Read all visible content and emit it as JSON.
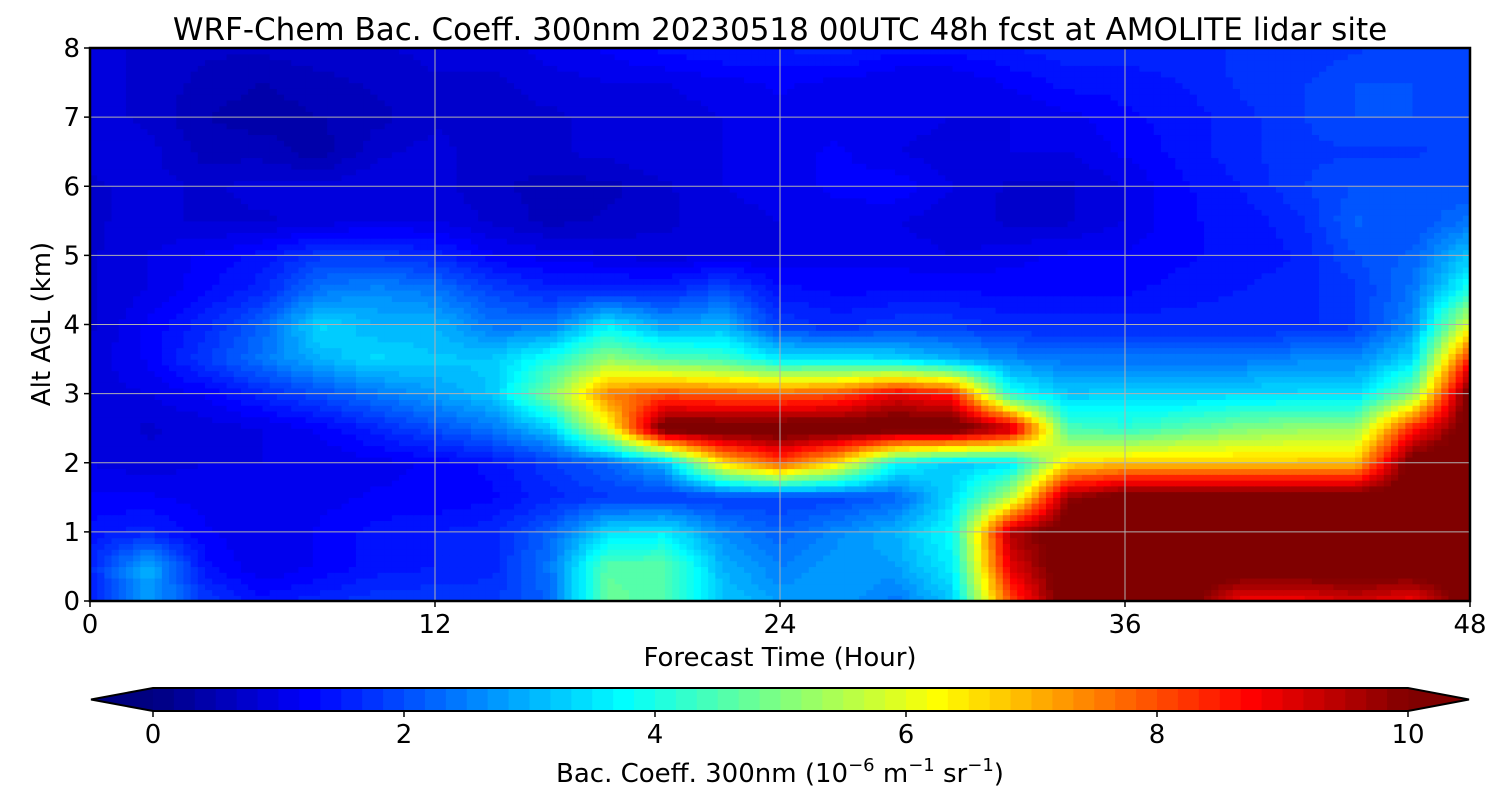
{
  "chart_data": {
    "type": "heatmap",
    "subtype": "filled-contour time-height cross-section",
    "title": "WRF-Chem Bac. Coeff. 300nm  20230518 00UTC 48h fcst at AMOLITE lidar site",
    "xlabel": "Forecast Time (Hour)",
    "ylabel": "Alt AGL (km)",
    "xlim": [
      0,
      48
    ],
    "ylim": [
      0,
      8
    ],
    "x_ticks": [
      0,
      12,
      24,
      36,
      48
    ],
    "y_ticks": [
      0,
      1,
      2,
      3,
      4,
      5,
      6,
      7,
      8
    ],
    "grid": true,
    "x": [
      0,
      2,
      4,
      6,
      8,
      10,
      12,
      14,
      16,
      18,
      20,
      22,
      24,
      26,
      28,
      30,
      32,
      34,
      36,
      38,
      40,
      42,
      44,
      46,
      48
    ],
    "y": [
      0,
      0.5,
      1,
      1.5,
      2,
      2.5,
      3,
      3.5,
      4,
      4.5,
      5,
      5.5,
      6,
      6.5,
      7,
      7.5,
      8
    ],
    "z": [
      [
        1.5,
        2.8,
        1.8,
        1.4,
        1.6,
        1.8,
        1.8,
        1.8,
        2.2,
        4.8,
        4.5,
        3.2,
        2.8,
        2.8,
        2.4,
        3.2,
        8.0,
        10.5,
        10.5,
        10.5,
        8.8,
        8.8,
        9.2,
        8.8,
        10.5
      ],
      [
        1.6,
        3.0,
        1.4,
        1.0,
        1.2,
        1.4,
        1.5,
        1.6,
        2.4,
        4.6,
        4.6,
        3.0,
        2.5,
        2.8,
        2.8,
        3.6,
        9.0,
        10.5,
        10.5,
        10.5,
        10.5,
        10.5,
        10.5,
        10.5,
        10.5
      ],
      [
        1.4,
        1.6,
        1.2,
        1.0,
        1.2,
        1.4,
        1.5,
        1.6,
        2.2,
        3.4,
        3.6,
        2.6,
        2.2,
        2.6,
        3.0,
        3.8,
        9.5,
        10.5,
        10.5,
        10.5,
        10.5,
        10.5,
        10.5,
        10.5,
        10.5
      ],
      [
        1.2,
        1.2,
        1.1,
        1.0,
        1.1,
        1.2,
        1.2,
        1.3,
        1.6,
        1.8,
        1.8,
        1.8,
        1.8,
        1.9,
        2.2,
        3.4,
        5.5,
        9.8,
        10.5,
        10.5,
        10.5,
        10.5,
        10.5,
        10.5,
        10.5
      ],
      [
        1.0,
        0.9,
        1.0,
        1.0,
        1.0,
        1.1,
        1.2,
        1.4,
        1.8,
        2.2,
        3.0,
        6.5,
        8.0,
        6.5,
        3.8,
        3.2,
        3.4,
        6.5,
        6.8,
        6.8,
        6.8,
        6.8,
        6.8,
        10.5,
        10.5
      ],
      [
        1.0,
        0.8,
        0.9,
        1.0,
        1.2,
        1.6,
        2.0,
        2.4,
        3.2,
        6.0,
        10.5,
        10.5,
        10.5,
        10.5,
        10.5,
        10.5,
        9.5,
        4.5,
        4.2,
        4.6,
        5.0,
        5.2,
        5.2,
        8.5,
        10.5
      ],
      [
        0.9,
        1.0,
        1.2,
        1.6,
        2.0,
        2.4,
        2.8,
        3.2,
        5.0,
        7.5,
        8.0,
        7.8,
        7.8,
        8.0,
        9.0,
        8.5,
        4.0,
        3.2,
        3.3,
        3.3,
        3.4,
        3.4,
        3.4,
        5.0,
        10.5
      ],
      [
        0.9,
        1.2,
        1.8,
        2.4,
        3.0,
        3.4,
        3.2,
        3.2,
        4.0,
        5.2,
        4.6,
        4.4,
        3.6,
        3.6,
        3.4,
        3.0,
        2.6,
        2.4,
        2.4,
        2.4,
        2.4,
        2.6,
        2.6,
        3.4,
        8.5
      ],
      [
        0.8,
        1.2,
        1.6,
        2.2,
        3.4,
        3.0,
        3.0,
        2.4,
        2.4,
        3.6,
        2.8,
        3.0,
        1.8,
        1.6,
        1.8,
        1.8,
        1.6,
        1.6,
        1.6,
        1.6,
        1.6,
        1.6,
        1.8,
        2.6,
        6.0
      ],
      [
        0.8,
        1.0,
        1.3,
        1.6,
        2.4,
        2.6,
        2.4,
        1.9,
        1.6,
        1.6,
        1.6,
        2.0,
        1.4,
        1.3,
        1.3,
        1.3,
        1.3,
        1.3,
        1.3,
        1.4,
        1.5,
        1.6,
        1.8,
        2.4,
        4.0
      ],
      [
        0.8,
        1.0,
        1.2,
        1.4,
        1.8,
        1.8,
        1.6,
        1.2,
        1.1,
        1.0,
        0.9,
        1.0,
        1.0,
        1.1,
        1.1,
        1.0,
        1.1,
        1.2,
        1.2,
        1.3,
        1.4,
        1.5,
        2.0,
        2.2,
        3.2
      ],
      [
        0.8,
        0.9,
        0.8,
        0.8,
        0.9,
        1.0,
        1.0,
        0.8,
        0.6,
        0.7,
        0.8,
        0.9,
        1.0,
        1.1,
        1.0,
        0.9,
        0.8,
        0.8,
        1.0,
        1.3,
        1.4,
        1.6,
        2.2,
        2.0,
        2.4
      ],
      [
        0.8,
        0.9,
        0.8,
        0.9,
        0.9,
        1.0,
        0.9,
        0.7,
        0.6,
        0.6,
        0.8,
        1.0,
        1.1,
        1.2,
        1.3,
        1.0,
        0.8,
        0.8,
        1.0,
        1.3,
        1.5,
        1.8,
        2.0,
        2.0,
        2.0
      ],
      [
        0.9,
        0.9,
        0.6,
        0.6,
        0.4,
        0.8,
        0.9,
        0.7,
        0.8,
        0.9,
        1.0,
        1.0,
        1.1,
        1.2,
        1.0,
        0.9,
        1.0,
        1.0,
        1.2,
        1.4,
        1.6,
        1.8,
        1.8,
        1.8,
        1.9
      ],
      [
        0.9,
        0.8,
        0.5,
        0.4,
        0.5,
        0.6,
        0.8,
        0.8,
        0.8,
        0.9,
        0.9,
        1.0,
        1.1,
        1.1,
        1.1,
        1.0,
        1.0,
        1.1,
        1.3,
        1.4,
        1.6,
        1.8,
        2.0,
        2.0,
        1.9
      ],
      [
        0.9,
        0.8,
        0.6,
        0.5,
        0.6,
        0.7,
        0.8,
        0.8,
        0.9,
        1.0,
        1.0,
        1.1,
        1.2,
        1.1,
        1.0,
        1.0,
        1.2,
        1.4,
        1.4,
        1.5,
        1.7,
        1.8,
        2.0,
        2.0,
        1.9
      ],
      [
        0.9,
        0.8,
        0.7,
        0.7,
        0.8,
        0.8,
        0.9,
        0.9,
        1.1,
        1.2,
        1.4,
        1.5,
        1.5,
        1.6,
        1.4,
        1.4,
        1.5,
        1.6,
        1.6,
        1.6,
        1.7,
        1.7,
        1.8,
        1.9,
        1.9
      ]
    ],
    "colorbar": {
      "label_main": "Bac. Coeff. 300nm  (10",
      "label_exp1": "−6",
      "label_unit1": " m",
      "label_exp2": "−1",
      "label_unit2": " sr",
      "label_exp3": "−1",
      "label_close": ")",
      "vmin": 0,
      "vmax": 10,
      "ticks": [
        "0",
        "2",
        "4",
        "6",
        "8",
        "10"
      ],
      "extend": "both",
      "colormap": "jet",
      "levels": 60
    }
  }
}
